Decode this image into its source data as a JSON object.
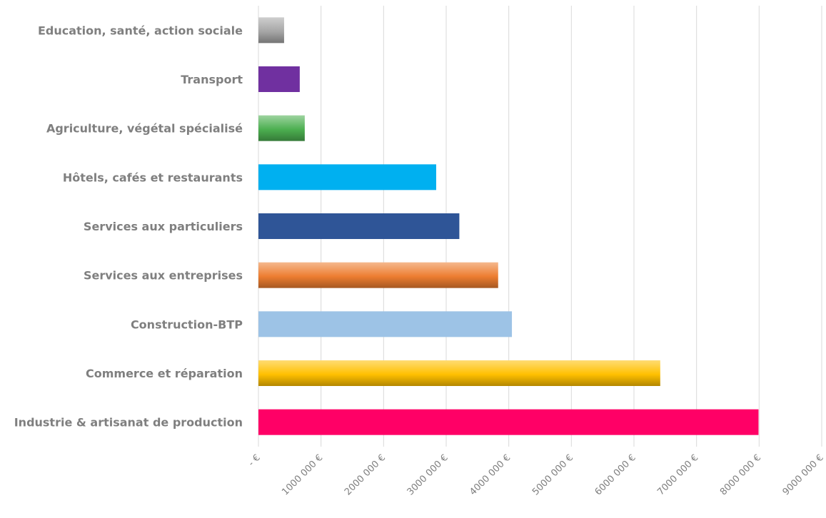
{
  "chart_data": {
    "type": "bar",
    "orientation": "horizontal",
    "categories": [
      "Industrie & artisanat de production",
      "Commerce et réparation",
      "Construction-BTP",
      "Services aux entreprises",
      "Services aux particuliers",
      "Hôtels, cafés et restaurants",
      "Agriculture, végétal spécialisé",
      "Transport",
      "Education, santé, action sociale"
    ],
    "values": [
      7990000,
      6420000,
      4050000,
      3830000,
      3210000,
      2840000,
      740000,
      660000,
      410000
    ],
    "colors": [
      "#ff0066",
      "#ffc000",
      "#9dc3e6",
      "#ed7d31",
      "#2f5597",
      "#00b0f0",
      "#4caf50",
      "#7030a0",
      "#a6a6a6"
    ],
    "fill_style": [
      "solid",
      "gradient",
      "solid",
      "gradient",
      "solid",
      "solid",
      "gradient",
      "solid",
      "gradient"
    ],
    "xlim": [
      0,
      9000000
    ],
    "x_ticks": [
      0,
      1000000,
      2000000,
      3000000,
      4000000,
      5000000,
      6000000,
      7000000,
      8000000,
      9000000
    ],
    "x_tick_labels": [
      "-   €",
      "1000 000 €",
      "2000 000 €",
      "3000 000 €",
      "4000 000 €",
      "5000 000 €",
      "6000 000 €",
      "7000 000 €",
      "8000 000 €",
      "9000 000 €"
    ],
    "grid": "vertical",
    "legend": "none",
    "title": "",
    "xlabel": "",
    "ylabel": ""
  }
}
